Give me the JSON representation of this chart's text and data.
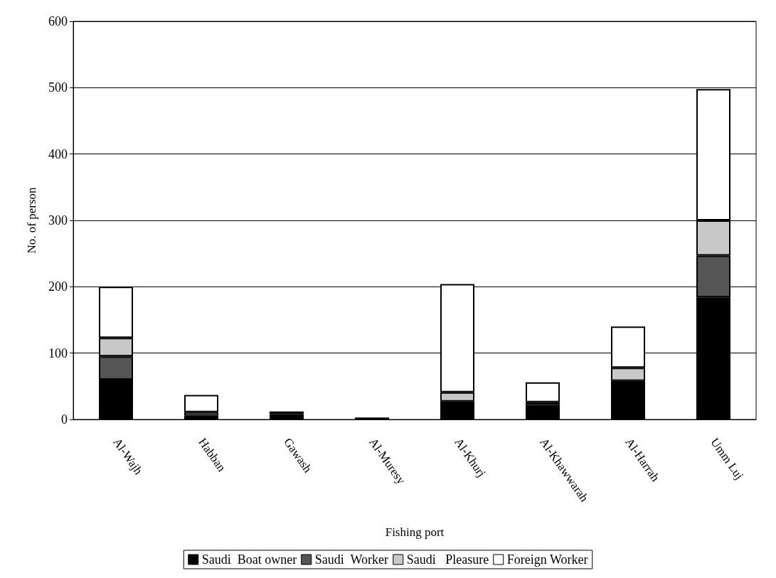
{
  "chart_data": {
    "type": "bar",
    "stacked": true,
    "xlabel": "Fishing port",
    "ylabel": "No. of person",
    "categories": [
      "Al-Wajh",
      "Habban",
      "Gawash",
      "Al-Muresy",
      "Al-Khurj",
      "Al-Khawwarah",
      "Al-Harrah",
      "Umm Luj"
    ],
    "series": [
      {
        "name": "Saudi  Boat owner",
        "color": "#000000",
        "values": [
          60,
          6,
          8,
          3,
          27,
          22,
          58,
          184
        ]
      },
      {
        "name": "Saudi  Worker",
        "color": "#555555",
        "values": [
          35,
          0,
          0,
          0,
          0,
          0,
          0,
          63
        ]
      },
      {
        "name": "Saudi   Pleasure",
        "color": "#c8c8c8",
        "values": [
          28,
          5,
          4,
          0,
          14,
          4,
          20,
          53
        ]
      },
      {
        "name": "Foreign Worker",
        "color": "#ffffff",
        "values": [
          77,
          26,
          0,
          0,
          163,
          30,
          62,
          198
        ]
      }
    ],
    "ylim": [
      0,
      600
    ],
    "yticks": [
      0,
      100,
      200,
      300,
      400,
      500,
      600
    ],
    "grid": "y",
    "legend": "bottom"
  }
}
